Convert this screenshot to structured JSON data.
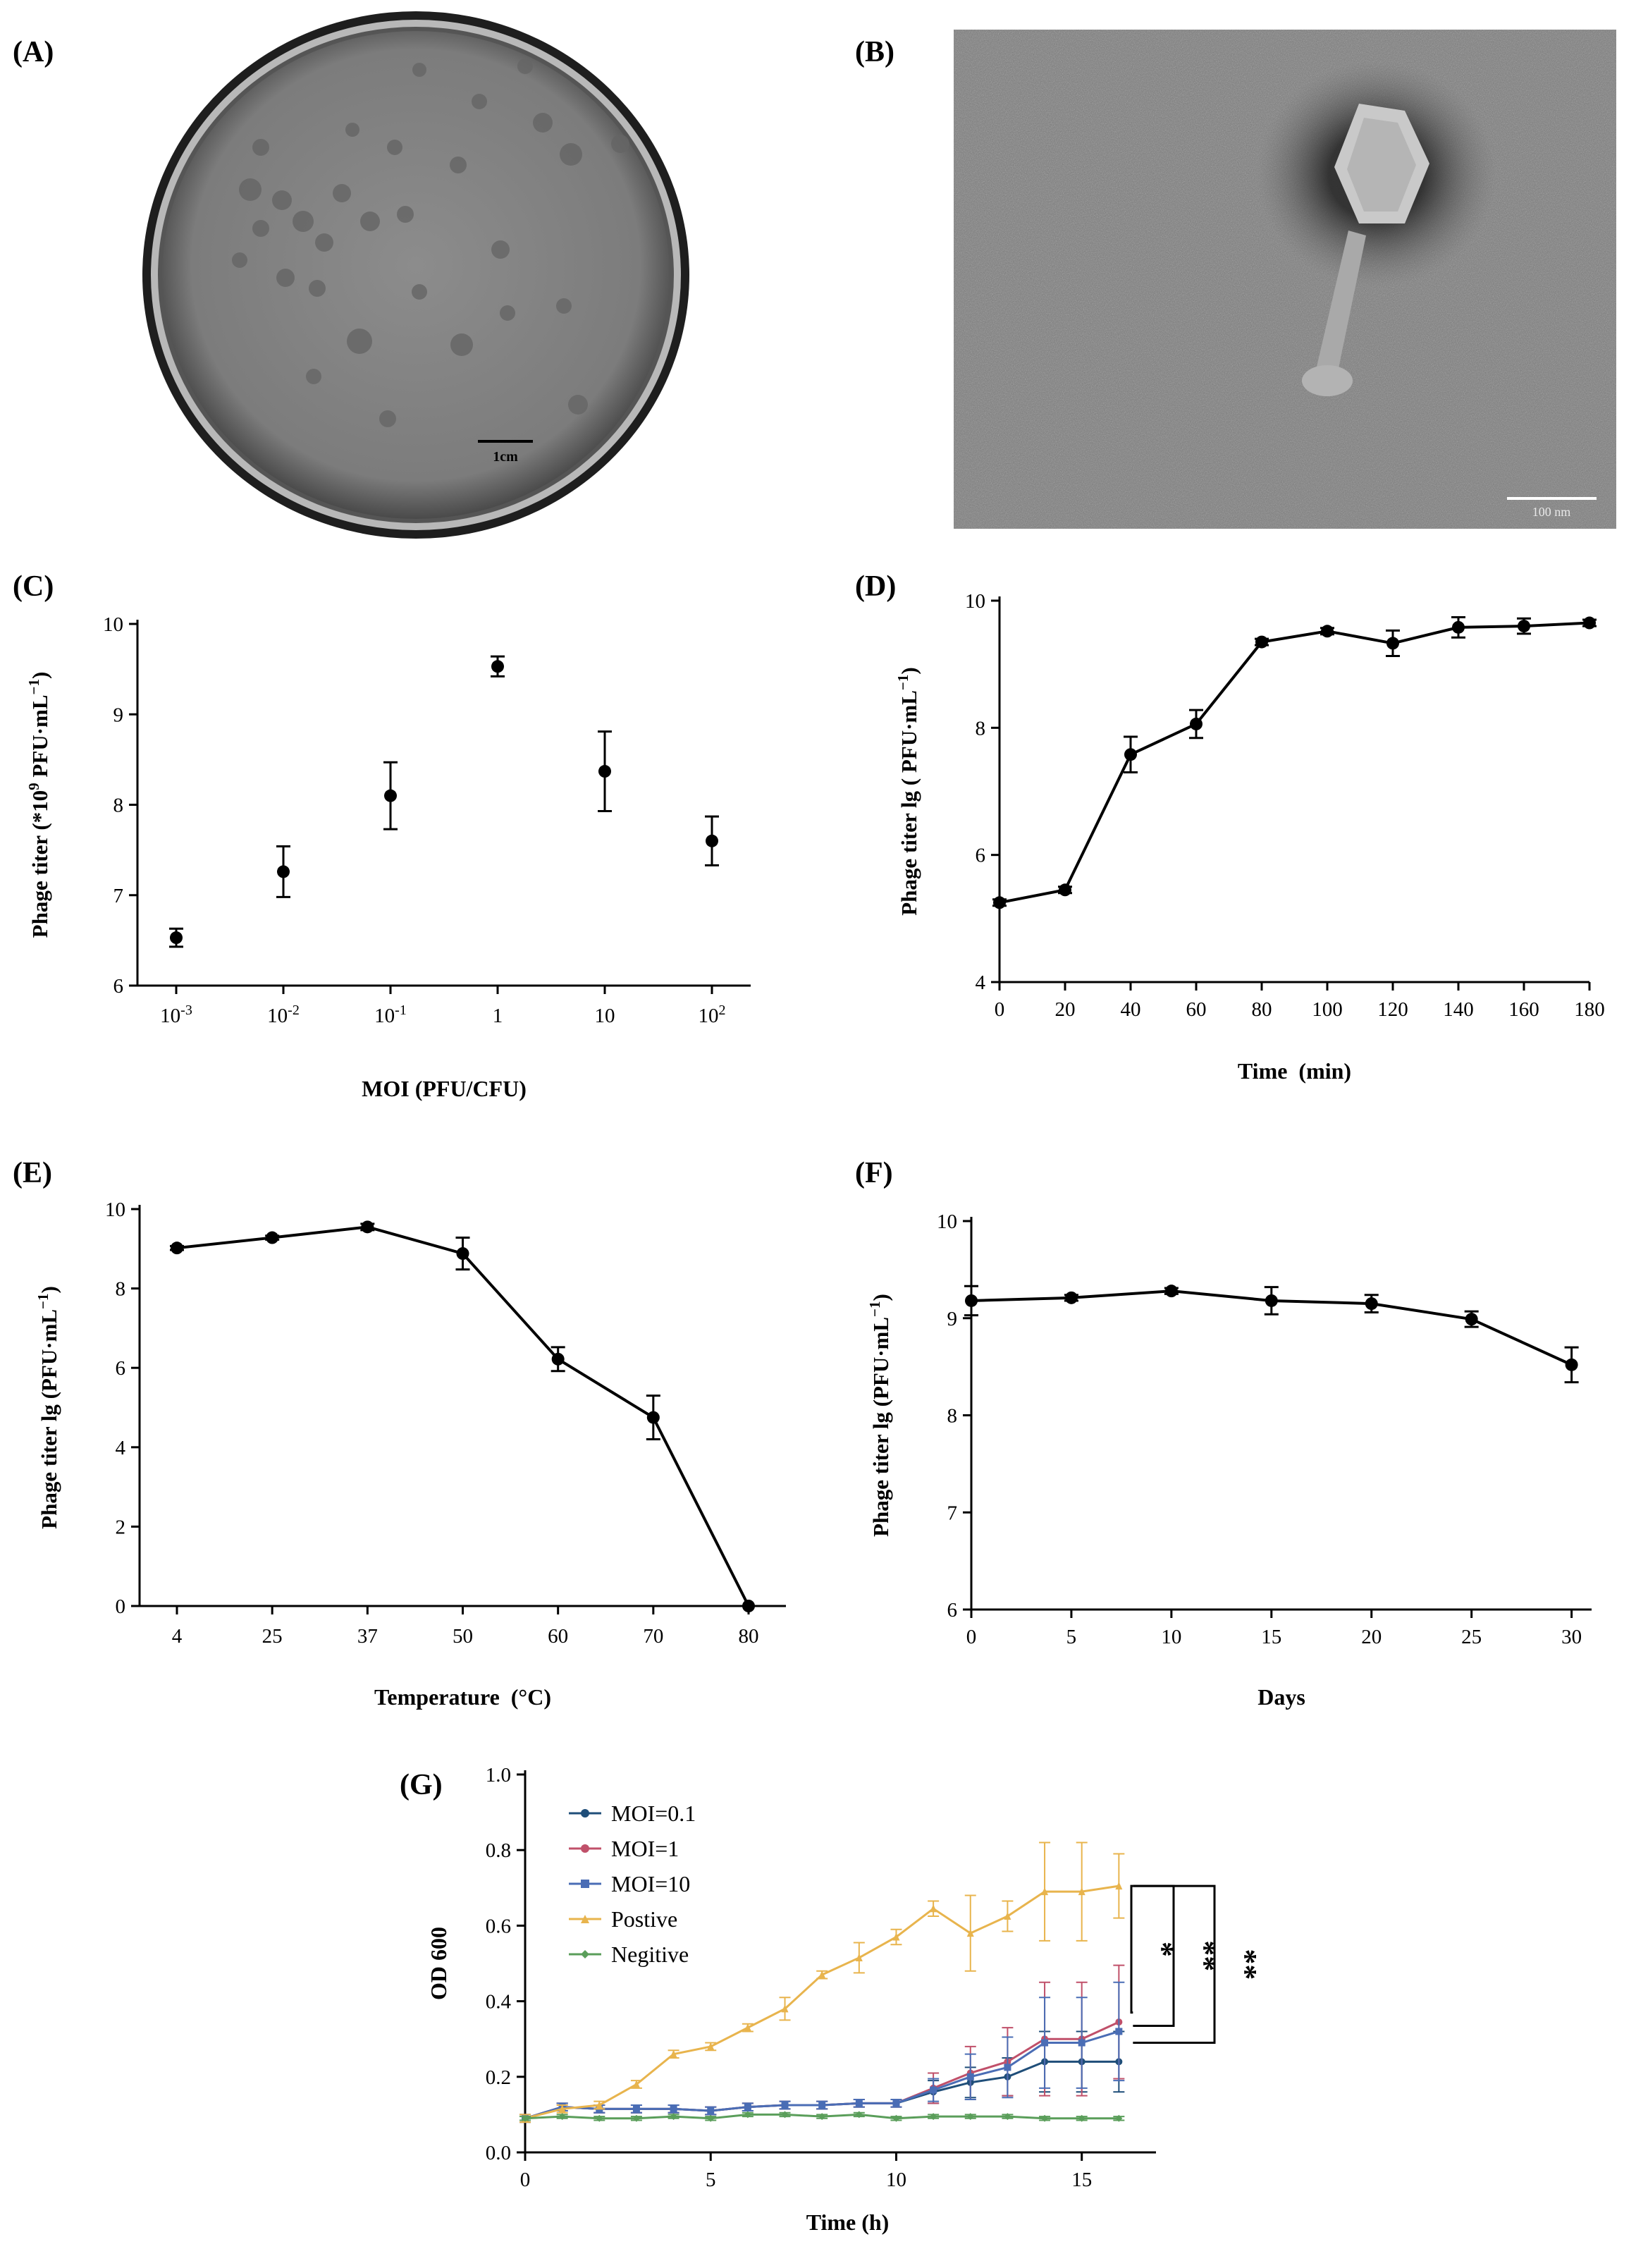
{
  "panels": {
    "A": {
      "label": "(A)",
      "scale_bar": "1cm"
    },
    "B": {
      "label": "(B)",
      "scale_bar": "100 nm"
    },
    "C": {
      "label": "(C)"
    },
    "D": {
      "label": "(D)"
    },
    "E": {
      "label": "(E)"
    },
    "F": {
      "label": "(F)"
    },
    "G": {
      "label": "(G)"
    }
  },
  "colors": {
    "axis": "#000000",
    "moi01": "#1f4e79",
    "moi1": "#c0506a",
    "moi10": "#4a6db5",
    "positive": "#e8b44d",
    "negative": "#5a9e5a"
  },
  "chart_data": [
    {
      "id": "C",
      "type": "scatter",
      "categories": [
        "10^-3",
        "10^-2",
        "10^-1",
        "1",
        "10",
        "10^2"
      ],
      "category_labels": [
        {
          "base": "10",
          "sup": "-3"
        },
        {
          "base": "10",
          "sup": "-2"
        },
        {
          "base": "10",
          "sup": "-1"
        },
        {
          "base": "1",
          "sup": ""
        },
        {
          "base": "10",
          "sup": ""
        },
        {
          "base": "10",
          "sup": "2"
        }
      ],
      "values": [
        6.53,
        7.26,
        8.1,
        9.53,
        8.37,
        7.6
      ],
      "errors": [
        0.1,
        0.28,
        0.37,
        0.11,
        0.44,
        0.27
      ],
      "xlabel": "MOI (PFU/CFU)",
      "ylabel": "Phage titer  (*10^9 PFU·mL^-1)",
      "ylabel_parts": {
        "pre": "Phage titer  (*10",
        "sup1": "9",
        "mid": " PFU·mL",
        "sup2": "−1",
        "post": ")"
      },
      "ylim": [
        6,
        10
      ],
      "yticks": [
        6,
        7,
        8,
        9,
        10
      ]
    },
    {
      "id": "D",
      "type": "line",
      "x": [
        0,
        20,
        40,
        60,
        80,
        100,
        120,
        140,
        160,
        180
      ],
      "values": [
        5.25,
        5.45,
        7.58,
        8.06,
        9.35,
        9.52,
        9.33,
        9.58,
        9.6,
        9.65
      ],
      "errors": [
        0.05,
        0.05,
        0.28,
        0.22,
        0.05,
        0.05,
        0.2,
        0.16,
        0.12,
        0.05
      ],
      "xlabel": "Time  (min)",
      "ylabel": "Phage titer lg ( PFU·mL^-1)",
      "ylabel_parts": {
        "pre": "Phage titer lg ( PFU·mL",
        "sup1": "−1",
        "mid": "",
        "sup2": "",
        "post": ")"
      },
      "xlim": [
        0,
        180
      ],
      "xticks": [
        0,
        20,
        40,
        60,
        80,
        100,
        120,
        140,
        160,
        180
      ],
      "ylim": [
        4,
        10
      ],
      "yticks": [
        4,
        6,
        8,
        10
      ]
    },
    {
      "id": "E",
      "type": "line",
      "categories": [
        "4",
        "25",
        "37",
        "50",
        "60",
        "70",
        "80"
      ],
      "values": [
        9.02,
        9.28,
        9.55,
        8.88,
        6.22,
        4.75,
        0
      ],
      "errors": [
        0.05,
        0.05,
        0.08,
        0.4,
        0.3,
        0.55,
        0
      ],
      "xlabel": "Temperature  (°C)",
      "ylabel": "Phage titer lg (PFU·mL^-1)",
      "ylabel_parts": {
        "pre": "Phage titer lg (PFU·mL",
        "sup1": "−1",
        "mid": "",
        "sup2": "",
        "post": ")"
      },
      "ylim": [
        0,
        10
      ],
      "yticks": [
        0,
        2,
        4,
        6,
        8,
        10
      ]
    },
    {
      "id": "F",
      "type": "line",
      "x": [
        0,
        5,
        10,
        15,
        20,
        25,
        30
      ],
      "values": [
        9.18,
        9.21,
        9.28,
        9.18,
        9.15,
        8.99,
        8.52
      ],
      "errors": [
        0.15,
        0.03,
        0.03,
        0.14,
        0.09,
        0.08,
        0.18
      ],
      "xlabel": "Days",
      "ylabel": "Phage titer lg (PFU·mL^-1)",
      "ylabel_parts": {
        "pre": "Phage titer lg (PFU·mL",
        "sup1": "−1",
        "mid": "",
        "sup2": "",
        "post": ")"
      },
      "xlim": [
        0,
        31
      ],
      "xticks": [
        0,
        5,
        10,
        15,
        20,
        25,
        30
      ],
      "ylim": [
        6,
        10
      ],
      "yticks": [
        6,
        7,
        8,
        9,
        10
      ]
    },
    {
      "id": "G",
      "type": "line",
      "x": [
        0,
        1,
        2,
        3,
        4,
        5,
        6,
        7,
        8,
        9,
        10,
        11,
        12,
        13,
        14,
        15,
        16
      ],
      "series": [
        {
          "name": "MOI=0.1",
          "color": "#1f4e79",
          "marker": "circle",
          "values": [
            0.09,
            0.12,
            0.115,
            0.115,
            0.115,
            0.11,
            0.12,
            0.125,
            0.125,
            0.13,
            0.13,
            0.16,
            0.185,
            0.2,
            0.24,
            0.24,
            0.24
          ],
          "errors": [
            0.01,
            0.01,
            0.01,
            0.01,
            0.01,
            0.01,
            0.01,
            0.01,
            0.01,
            0.01,
            0.01,
            0.03,
            0.04,
            0.05,
            0.08,
            0.08,
            0.08
          ]
        },
        {
          "name": "MOI=1",
          "color": "#c0506a",
          "marker": "circle",
          "values": [
            0.09,
            0.12,
            0.115,
            0.115,
            0.115,
            0.11,
            0.12,
            0.125,
            0.125,
            0.13,
            0.13,
            0.17,
            0.21,
            0.24,
            0.3,
            0.3,
            0.345
          ],
          "errors": [
            0.01,
            0.01,
            0.01,
            0.01,
            0.01,
            0.01,
            0.01,
            0.01,
            0.01,
            0.01,
            0.01,
            0.04,
            0.07,
            0.09,
            0.15,
            0.15,
            0.15
          ]
        },
        {
          "name": "MOI=10",
          "color": "#4a6db5",
          "marker": "square",
          "values": [
            0.09,
            0.12,
            0.115,
            0.115,
            0.115,
            0.11,
            0.12,
            0.125,
            0.125,
            0.13,
            0.13,
            0.165,
            0.2,
            0.225,
            0.29,
            0.29,
            0.32
          ],
          "errors": [
            0.01,
            0.01,
            0.01,
            0.01,
            0.01,
            0.01,
            0.01,
            0.01,
            0.01,
            0.01,
            0.01,
            0.03,
            0.06,
            0.08,
            0.12,
            0.12,
            0.13
          ]
        },
        {
          "name": "Postive",
          "color": "#e8b44d",
          "marker": "triangle",
          "values": [
            0.09,
            0.115,
            0.125,
            0.18,
            0.26,
            0.28,
            0.33,
            0.38,
            0.47,
            0.515,
            0.57,
            0.645,
            0.58,
            0.625,
            0.69,
            0.69,
            0.705
          ],
          "errors": [
            0.01,
            0.01,
            0.01,
            0.01,
            0.01,
            0.01,
            0.01,
            0.03,
            0.01,
            0.04,
            0.02,
            0.02,
            0.1,
            0.04,
            0.13,
            0.13,
            0.085
          ]
        },
        {
          "name": "Negitive",
          "color": "#5a9e5a",
          "marker": "diamond",
          "values": [
            0.09,
            0.095,
            0.09,
            0.09,
            0.095,
            0.09,
            0.1,
            0.1,
            0.095,
            0.1,
            0.09,
            0.095,
            0.095,
            0.095,
            0.09,
            0.09,
            0.09
          ],
          "errors": [
            0.005,
            0.005,
            0.005,
            0.005,
            0.005,
            0.005,
            0.005,
            0.005,
            0.005,
            0.005,
            0.005,
            0.005,
            0.005,
            0.005,
            0.005,
            0.005,
            0.005
          ]
        }
      ],
      "significance": [
        "*",
        "**",
        "**"
      ],
      "xlabel": "Time (h)",
      "ylabel": "OD 600",
      "xlim": [
        0,
        17
      ],
      "xticks": [
        0,
        5,
        10,
        15
      ],
      "ylim": [
        0,
        1.0
      ],
      "yticks": [
        0.0,
        0.2,
        0.4,
        0.6,
        0.8,
        1.0
      ],
      "ytick_labels": [
        "0.0",
        "0.2",
        "0.4",
        "0.6",
        "0.8",
        "1.0"
      ],
      "legend_position": "top-left"
    }
  ]
}
